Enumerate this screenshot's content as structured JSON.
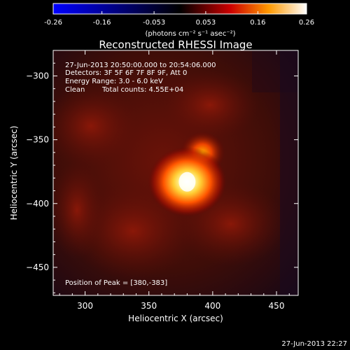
{
  "colorbar": {
    "ticks": [
      "-0.26",
      "-0.16",
      "-0.053",
      "0.053",
      "0.16",
      "0.26"
    ],
    "tick_values": [
      -0.26,
      -0.16,
      -0.053,
      0.053,
      0.16,
      0.26
    ],
    "range": [
      -0.26,
      0.26
    ],
    "units_label": "(photons cm⁻² s⁻¹ asec⁻²)"
  },
  "chart_data": {
    "type": "heatmap",
    "title": "Reconstructed RHESSI Image",
    "xlabel": "Heliocentric X (arcsec)",
    "ylabel": "Heliocentric Y (arcsec)",
    "xlim": [
      275,
      467
    ],
    "ylim": [
      -472,
      -280
    ],
    "x_ticks": [
      300,
      350,
      400,
      450
    ],
    "y_ticks": [
      -300,
      -350,
      -400,
      -450
    ],
    "x_tick_labels": [
      "300",
      "350",
      "400",
      "450"
    ],
    "y_tick_labels": [
      "−300",
      "−350",
      "−400",
      "−450"
    ],
    "peak": {
      "x": 380,
      "y": -383,
      "value": 0.26
    },
    "secondary_source": {
      "x": 392,
      "y": -360,
      "value": 0.12
    },
    "colormap": [
      "#0000ff",
      "#000000",
      "#cc0000",
      "#ff9900",
      "#ffffff"
    ],
    "annotations": {
      "time_range": "27-Jun-2013 20:50:00.000 to 20:54:06.000",
      "detectors": "Detectors: 3F 5F 6F 7F 8F 9F, Att 0",
      "energy": "Energy Range: 3.0 - 6.0 keV",
      "method": "Clean",
      "counts": "Total counts: 4.55E+04",
      "peak_text": "Position of Peak = [380,-383]"
    }
  },
  "footer": {
    "timestamp": "27-Jun-2013 22:27"
  }
}
